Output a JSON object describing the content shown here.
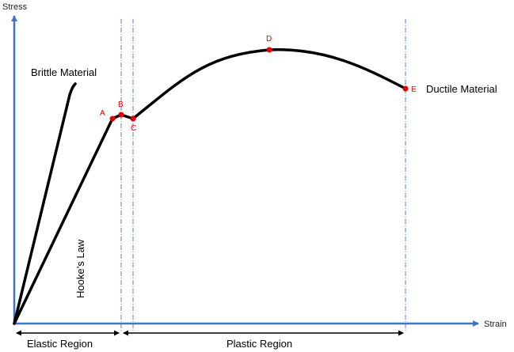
{
  "axes": {
    "y_label": "Stress",
    "x_label": "Strain",
    "color": "#4472c4"
  },
  "curves": {
    "brittle_label": "Brittle Material",
    "ductile_label": "Ductile Material",
    "hookes_law_label": "Hooke’s Law",
    "color": "#000000"
  },
  "points": {
    "A": "A",
    "B": "B",
    "C": "C",
    "D": "D",
    "E": "E",
    "color": "#e00000"
  },
  "regions": {
    "elastic": "Elastic Region",
    "plastic": "Plastic Region"
  },
  "guides": {
    "color": "#4472c4"
  }
}
